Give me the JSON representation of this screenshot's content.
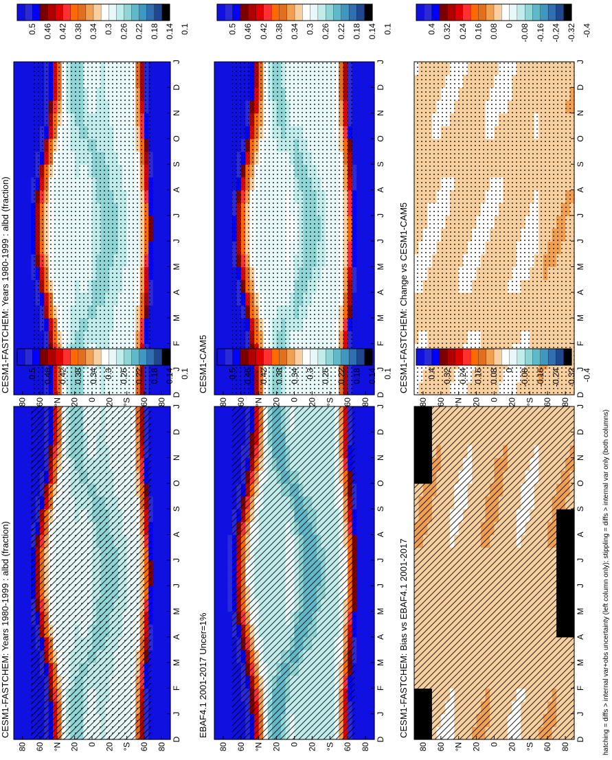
{
  "figure": {
    "footnote": "hatching = diffs > internal var+obs uncertainty (left column only); stippling = diffs > internal var only (both columns)"
  },
  "palettes": {
    "abs": [
      "#1010e0",
      "#2a2ad8",
      "#0000ff",
      "#7a0000",
      "#b00000",
      "#e00000",
      "#ff3030",
      "#ff6a00",
      "#e07020",
      "#f0a050",
      "#f8d0a0",
      "#ffffff",
      "#e8f8f8",
      "#c0ecec",
      "#90d6d6",
      "#60b8c8",
      "#4098c0",
      "#3070b0",
      "#204890",
      "#000000"
    ],
    "diff": [
      "#1010e0",
      "#2a2ad8",
      "#0000ff",
      "#7a0000",
      "#b00000",
      "#e00000",
      "#ff3030",
      "#ff6a00",
      "#e07020",
      "#f0a050",
      "#f8d0a0",
      "#ffffff",
      "#e8f8f8",
      "#c0ecec",
      "#90d6d6",
      "#60b8c8",
      "#4098c0",
      "#3070b0",
      "#204890",
      "#000000"
    ]
  },
  "colorbars": {
    "abs_labels": [
      "0.5",
      "0.46",
      "0.42",
      "0.38",
      "0.34",
      "0.3",
      "0.26",
      "0.22",
      "0.18",
      "0.14",
      "0.1"
    ],
    "diff_labels": [
      "0.4",
      "0.32",
      "0.24",
      "0.16",
      "0.08",
      "0",
      "-0.08",
      "-0.16",
      "-0.24",
      "-0.32",
      "-0.4"
    ]
  },
  "axes": {
    "months": [
      "D",
      "J",
      "F",
      "M",
      "A",
      "M",
      "J",
      "J",
      "A",
      "S",
      "O",
      "N",
      "D",
      "J"
    ],
    "lat_ticks": [
      "80",
      "60",
      "°N",
      "20",
      "0",
      "20",
      "°S",
      "60",
      "80"
    ]
  },
  "chart_data": [
    {
      "type": "heatmap",
      "title": "CESM1-FASTCHEM: Years 1980-1999 : albd (fraction)",
      "x": "month (Dec–Jan)",
      "y": "latitude (80N–80S)",
      "field": "absolute",
      "overlay": "hatching+stippling",
      "notes": "low albedo (~0.26-0.3) in tropics, rising to >0.5 poleward of ~60°; NH high-albedo edge shifts south in boreal winter"
    },
    {
      "type": "heatmap",
      "title": "CESM1-FASTCHEM: Years 1980-1999 : albd (fraction)",
      "x": "month (Dec–Jan)",
      "y": "latitude (80N–80S)",
      "field": "absolute",
      "overlay": "stippling",
      "notes": "same field as left-top panel, stippled"
    },
    {
      "type": "heatmap",
      "title": "EBAF4.1 2001-2017 Uncer=1%",
      "x": "month (Dec–Jan)",
      "y": "latitude (80N–80S)",
      "field": "absolute",
      "overlay": "hatching",
      "notes": "observed albedo, similar structure with slightly lower tropical values"
    },
    {
      "type": "heatmap",
      "title": "CESM1-CAM5",
      "x": "month (Dec–Jan)",
      "y": "latitude (80N–80S)",
      "field": "absolute",
      "overlay": "stippling",
      "notes": "reference model albedo climatology"
    },
    {
      "type": "heatmap",
      "title": "CESM1-FASTCHEM: Bias vs EBAF4.1 2001-2017",
      "x": "month (Dec–Jan)",
      "y": "latitude (80N–80S)",
      "field": "difference",
      "overlay": "hatching",
      "notes": "mostly +0 to +0.16 bias, strong negative (< -0.3) near 80°S in austral winter"
    },
    {
      "type": "heatmap",
      "title": "CESM1-FASTCHEM: Change vs CESM1-CAM5",
      "x": "month (Dec–Jan)",
      "y": "latitude (80N–80S)",
      "field": "difference",
      "overlay": "stippling",
      "notes": "small positive differences (0 to +0.08) almost everywhere"
    }
  ]
}
